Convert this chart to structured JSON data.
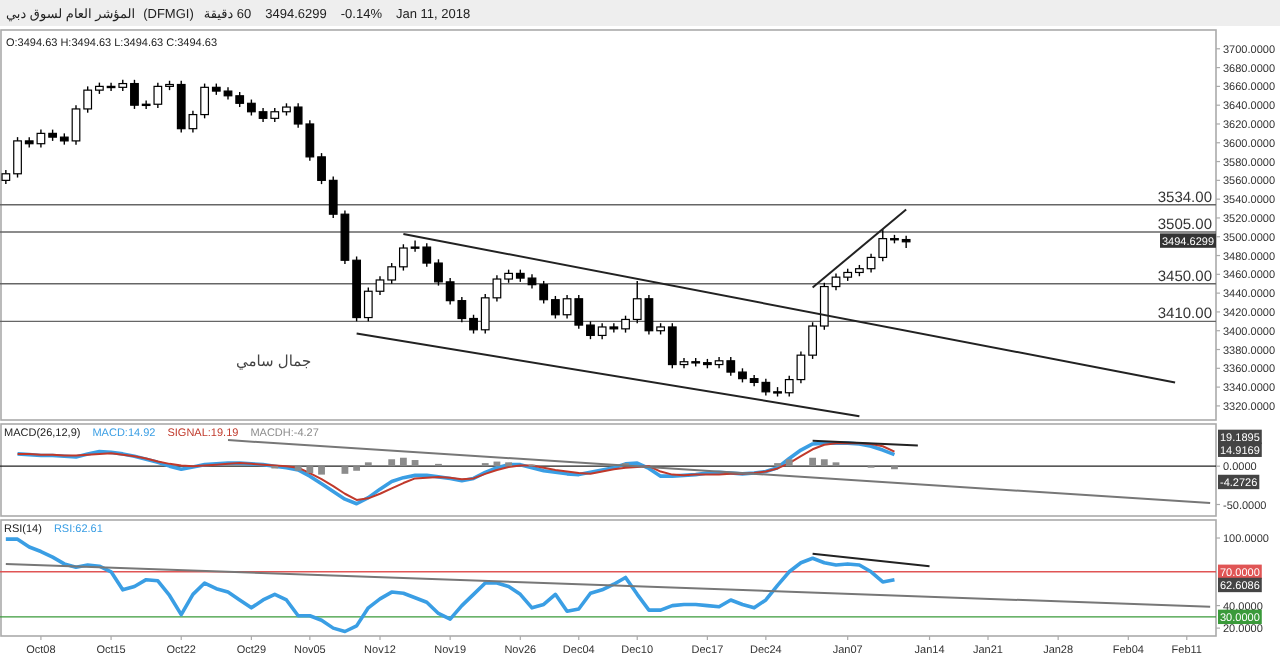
{
  "chart_data": [
    {
      "type": "candlestick",
      "title": "المؤشر العام لسوق دبي",
      "subtitle": "(DFMGI)",
      "categories": [
        null,
        null,
        null,
        null,
        null,
        null,
        null,
        null,
        null,
        null,
        null,
        null,
        null,
        null,
        null,
        null,
        null,
        null,
        null,
        null,
        null,
        null,
        null,
        null,
        null,
        null,
        null,
        null,
        null,
        null,
        null,
        null,
        null,
        null,
        null,
        null,
        null,
        null,
        null,
        null,
        null,
        null,
        null,
        null,
        null,
        null,
        null,
        null,
        null,
        null,
        null,
        null,
        null,
        null,
        null,
        null,
        null,
        null,
        null,
        null,
        null,
        null,
        null,
        null,
        null,
        null,
        null,
        null,
        null,
        null,
        null,
        null,
        null,
        null,
        null,
        null,
        null,
        null,
        null,
        null,
        null,
        null,
        null,
        null,
        null,
        null,
        null,
        null,
        null,
        null,
        null,
        null,
        null,
        null,
        null,
        null,
        null,
        null,
        null,
        null,
        null,
        null,
        null,
        null
      ],
      "ohlc": [
        [
          3560,
          3571,
          3556,
          3567
        ],
        [
          3567,
          3606,
          3563,
          3602
        ],
        [
          3602,
          3606,
          3595,
          3599
        ],
        [
          3599,
          3614,
          3595,
          3610
        ],
        [
          3610,
          3614,
          3602,
          3606
        ],
        [
          3606,
          3610,
          3598,
          3602
        ],
        [
          3602,
          3640,
          3598,
          3636
        ],
        [
          3636,
          3660,
          3632,
          3656
        ],
        [
          3656,
          3664,
          3652,
          3660
        ],
        [
          3660,
          3664,
          3655,
          3659
        ],
        [
          3659,
          3667,
          3655,
          3663
        ],
        [
          3663,
          3667,
          3636,
          3640
        ],
        [
          3640,
          3645,
          3636,
          3641
        ],
        [
          3641,
          3664,
          3637,
          3660
        ],
        [
          3660,
          3666,
          3656,
          3662
        ],
        [
          3662,
          3666,
          3611,
          3615
        ],
        [
          3615,
          3634,
          3611,
          3630
        ],
        [
          3630,
          3663,
          3626,
          3659
        ],
        [
          3659,
          3663,
          3651,
          3655
        ],
        [
          3655,
          3659,
          3646,
          3650
        ],
        [
          3650,
          3654,
          3638,
          3642
        ],
        [
          3642,
          3646,
          3629,
          3633
        ],
        [
          3633,
          3637,
          3622,
          3626
        ],
        [
          3626,
          3637,
          3622,
          3633
        ],
        [
          3633,
          3642,
          3629,
          3638
        ],
        [
          3638,
          3642,
          3616,
          3620
        ],
        [
          3620,
          3624,
          3581,
          3585
        ],
        [
          3585,
          3589,
          3556,
          3560
        ],
        [
          3560,
          3564,
          3520,
          3524
        ],
        [
          3524,
          3528,
          3471,
          3475
        ],
        [
          3475,
          3479,
          3410,
          3414
        ],
        [
          3414,
          3446,
          3410,
          3442
        ],
        [
          3442,
          3458,
          3438,
          3454
        ],
        [
          3454,
          3472,
          3450,
          3468
        ],
        [
          3468,
          3492,
          3464,
          3488
        ],
        [
          3488,
          3496,
          3484,
          3489
        ],
        [
          3489,
          3493,
          3468,
          3472
        ],
        [
          3472,
          3476,
          3448,
          3452
        ],
        [
          3452,
          3456,
          3428,
          3432
        ],
        [
          3432,
          3436,
          3409,
          3413
        ],
        [
          3413,
          3417,
          3397,
          3401
        ],
        [
          3401,
          3439,
          3397,
          3435
        ],
        [
          3435,
          3459,
          3431,
          3455
        ],
        [
          3455,
          3465,
          3451,
          3461
        ],
        [
          3461,
          3465,
          3452,
          3456
        ],
        [
          3456,
          3460,
          3445,
          3449
        ],
        [
          3449,
          3453,
          3429,
          3433
        ],
        [
          3433,
          3437,
          3413,
          3417
        ],
        [
          3417,
          3438,
          3413,
          3434
        ],
        [
          3434,
          3438,
          3402,
          3406
        ],
        [
          3406,
          3410,
          3391,
          3395
        ],
        [
          3395,
          3408,
          3391,
          3404
        ],
        [
          3404,
          3408,
          3398,
          3402
        ],
        [
          3402,
          3416,
          3398,
          3412
        ],
        [
          3412,
          3453,
          3408,
          3434
        ],
        [
          3434,
          3438,
          3396,
          3400
        ],
        [
          3400,
          3408,
          3396,
          3404
        ],
        [
          3404,
          3408,
          3360,
          3364
        ],
        [
          3364,
          3371,
          3360,
          3367
        ],
        [
          3367,
          3371,
          3362,
          3366
        ],
        [
          3366,
          3370,
          3360,
          3364
        ],
        [
          3364,
          3372,
          3360,
          3368
        ],
        [
          3368,
          3372,
          3352,
          3356
        ],
        [
          3356,
          3360,
          3345,
          3349
        ],
        [
          3349,
          3353,
          3341,
          3345
        ],
        [
          3345,
          3349,
          3331,
          3335
        ],
        [
          3335,
          3340,
          3330,
          3334
        ],
        [
          3334,
          3352,
          3330,
          3348
        ],
        [
          3348,
          3378,
          3344,
          3374
        ],
        [
          3374,
          3409,
          3370,
          3405
        ],
        [
          3405,
          3451,
          3401,
          3447
        ],
        [
          3447,
          3461,
          3443,
          3457
        ],
        [
          3457,
          3466,
          3453,
          3462
        ],
        [
          3462,
          3470,
          3458,
          3466
        ],
        [
          3466,
          3482,
          3462,
          3478
        ],
        [
          3478,
          3508,
          3474,
          3498
        ],
        [
          3498,
          3502,
          3493,
          3497
        ],
        [
          3497,
          3501,
          3488,
          3494.63
        ],
        null,
        null,
        null,
        null,
        null,
        null,
        null,
        null,
        null,
        null,
        null,
        null,
        null,
        null,
        null,
        null,
        null,
        null,
        null,
        null,
        null,
        null,
        null,
        null,
        null,
        null
      ],
      "series": [
        {
          "type": "line",
          "color": "#222222",
          "values": [
            null,
            null,
            null,
            null,
            null,
            null,
            null,
            null,
            null,
            null,
            null,
            null,
            null,
            null,
            null,
            null,
            null,
            null,
            null,
            null,
            null,
            null,
            null,
            null,
            null,
            null,
            null,
            null,
            null,
            null,
            null,
            null,
            null,
            null,
            3503,
            null,
            null,
            null,
            null,
            null,
            null,
            null,
            null,
            null,
            null,
            null,
            null,
            null,
            null,
            null,
            null,
            null,
            null,
            null,
            null,
            null,
            null,
            null,
            null,
            null,
            null,
            null,
            null,
            null,
            null,
            null,
            null,
            null,
            null,
            null,
            null,
            null,
            null,
            null,
            null,
            null,
            null,
            null,
            null,
            null,
            null,
            null,
            null,
            null,
            null,
            null,
            null,
            null,
            null,
            null,
            null,
            null,
            null,
            null,
            null,
            null,
            null,
            null,
            null,
            null,
            3345,
            null,
            null,
            null
          ]
        },
        {
          "type": "line",
          "color": "#222222",
          "values": [
            null,
            null,
            null,
            null,
            null,
            null,
            null,
            null,
            null,
            null,
            null,
            null,
            null,
            null,
            null,
            null,
            null,
            null,
            null,
            null,
            null,
            null,
            null,
            null,
            null,
            null,
            null,
            null,
            null,
            null,
            3397,
            null,
            null,
            null,
            null,
            null,
            null,
            null,
            null,
            null,
            null,
            null,
            null,
            null,
            null,
            null,
            null,
            null,
            null,
            null,
            null,
            null,
            null,
            null,
            null,
            null,
            null,
            null,
            null,
            null,
            null,
            null,
            null,
            null,
            null,
            null,
            null,
            null,
            null,
            null,
            null,
            null,
            null,
            3309,
            null,
            null,
            null,
            null,
            null,
            null,
            null,
            null,
            null,
            null,
            null,
            null,
            null,
            null,
            null,
            null,
            null,
            null,
            null,
            null,
            null,
            null,
            null,
            null,
            null,
            null,
            null,
            null,
            null,
            null
          ]
        },
        {
          "type": "line",
          "color": "#222222",
          "values": [
            null,
            null,
            null,
            null,
            null,
            null,
            null,
            null,
            null,
            null,
            null,
            null,
            null,
            null,
            null,
            null,
            null,
            null,
            null,
            null,
            null,
            null,
            null,
            null,
            null,
            null,
            null,
            null,
            null,
            null,
            null,
            null,
            null,
            null,
            null,
            null,
            null,
            null,
            null,
            null,
            null,
            null,
            null,
            null,
            null,
            null,
            null,
            null,
            null,
            null,
            null,
            null,
            null,
            null,
            null,
            null,
            null,
            null,
            null,
            null,
            null,
            null,
            null,
            null,
            null,
            null,
            null,
            null,
            null,
            3446,
            null,
            null,
            null,
            null,
            null,
            null,
            null,
            3529,
            null,
            null,
            null,
            null,
            null,
            null,
            null,
            null,
            null,
            null,
            null,
            null,
            null,
            null,
            null,
            null,
            null,
            null,
            null,
            null,
            null,
            null,
            null,
            null,
            null,
            null
          ]
        }
      ],
      "ylim": [
        3305,
        3720
      ],
      "tick_labels": "y",
      "yticks": [
        {
          "value": 3320,
          "label": "3320.0000"
        },
        {
          "value": 3340,
          "label": "3340.0000"
        },
        {
          "value": 3360,
          "label": "3360.0000"
        },
        {
          "value": 3380,
          "label": "3380.0000"
        },
        {
          "value": 3400,
          "label": "3400.0000"
        },
        {
          "value": 3420,
          "label": "3420.0000"
        },
        {
          "value": 3440,
          "label": "3440.0000"
        },
        {
          "value": 3460,
          "label": "3460.0000"
        },
        {
          "value": 3480,
          "label": "3480.0000"
        },
        {
          "value": 3500,
          "label": "3500.0000"
        },
        {
          "value": 3520,
          "label": "3520.0000"
        },
        {
          "value": 3540,
          "label": "3540.0000"
        },
        {
          "value": 3560,
          "label": "3560.0000"
        },
        {
          "value": 3580,
          "label": "3580.0000"
        },
        {
          "value": 3600,
          "label": "3600.0000"
        },
        {
          "value": 3620,
          "label": "3620.0000"
        },
        {
          "value": 3640,
          "label": "3640.0000"
        },
        {
          "value": 3660,
          "label": "3660.0000"
        },
        {
          "value": 3680,
          "label": "3680.0000"
        },
        {
          "value": 3700,
          "label": "3700.0000"
        }
      ],
      "ref_lines": [
        {
          "axis": "y",
          "value": 3534,
          "label": "3534.00",
          "color": "#666666"
        },
        {
          "axis": "y",
          "value": 3505,
          "label": "3505.00",
          "color": "#666666"
        },
        {
          "axis": "y",
          "value": 3450,
          "label": "3450.00",
          "color": "#666666"
        },
        {
          "axis": "y",
          "value": 3410,
          "label": "3410.00",
          "color": "#666666"
        }
      ],
      "annotations": [
        "60 دقيقة",
        "3494.6299",
        "-0.14%",
        "Jan 11, 2018",
        "O:3494.63 H:3494.63 L:3494.63 C:3494.63",
        "جمال سامي",
        "3494.6299"
      ]
    },
    {
      "type": "line",
      "title": "MACD(26,12,9)",
      "categories": [
        null,
        null,
        null,
        null,
        null,
        null,
        null,
        null,
        null,
        null,
        null,
        null,
        null,
        null,
        null,
        null,
        null,
        null,
        null,
        null,
        null,
        null,
        null,
        null,
        null,
        null,
        null,
        null,
        null,
        null,
        null,
        null,
        null,
        null,
        null,
        null,
        null,
        null,
        null,
        null,
        null,
        null,
        null,
        null,
        null,
        null,
        null,
        null,
        null,
        null,
        null,
        null,
        null,
        null,
        null,
        null,
        null,
        null,
        null,
        null,
        null,
        null,
        null,
        null,
        null,
        null,
        null,
        null,
        null,
        null,
        null,
        null,
        null,
        null,
        null,
        null,
        null,
        null,
        null,
        null,
        null,
        null,
        null,
        null,
        null,
        null,
        null,
        null,
        null,
        null,
        null,
        null,
        null,
        null,
        null,
        null,
        null,
        null,
        null,
        null,
        null,
        null,
        null,
        null
      ],
      "series": [
        {
          "name": "MACD:14.92",
          "color": "#3a9ee4",
          "values": [
            null,
            16,
            15,
            14,
            14,
            13,
            12,
            16,
            19,
            18,
            16,
            13,
            9,
            5,
            0,
            -4,
            -1,
            2,
            3,
            4,
            4,
            3,
            2,
            0,
            -2,
            -5,
            -13,
            -23,
            -33,
            -43,
            -49,
            -41,
            -30,
            -20,
            -15,
            -12,
            -12,
            -14,
            -16,
            -19,
            -16,
            -8,
            -2,
            2,
            2,
            -2,
            -6,
            -8,
            -10,
            -11,
            -8,
            -5,
            -2,
            3,
            4,
            -3,
            -13,
            -13,
            -12,
            -11,
            -9,
            -8,
            -9,
            -10,
            -9,
            -7,
            -2,
            10,
            21,
            29,
            30,
            30,
            30,
            29,
            26,
            21,
            15,
            null,
            null,
            null,
            null,
            null,
            null,
            null,
            null,
            null,
            null,
            null,
            null,
            null,
            null,
            null,
            null,
            null,
            null,
            null,
            null,
            null,
            null,
            null,
            null,
            null,
            null,
            null
          ]
        },
        {
          "name": "SIGNAL:19.19",
          "color": "#c0392b",
          "values": [
            null,
            16,
            16,
            15,
            15,
            14,
            14,
            15,
            16,
            17,
            15,
            13,
            10,
            6,
            3,
            1,
            0,
            1,
            2,
            3,
            4,
            3,
            2,
            1,
            0,
            -2,
            -9,
            -17,
            -26,
            -36,
            -44,
            -42,
            -36,
            -29,
            -22,
            -16,
            -15,
            -14,
            -15,
            -17,
            -16,
            -10,
            -5,
            -1,
            1,
            1,
            -2,
            -5,
            -7,
            -9,
            -10,
            -7,
            -4,
            -2,
            -1,
            0,
            -7,
            -11,
            -12,
            -11,
            -11,
            -11,
            -10,
            -10,
            -9,
            -7,
            -3,
            4,
            13,
            22,
            28,
            30,
            30,
            30,
            29,
            26,
            19,
            null,
            null,
            null,
            null,
            null,
            null,
            null,
            null,
            null,
            null,
            null,
            null,
            null,
            null,
            null,
            null,
            null,
            null,
            null,
            null,
            null,
            null,
            null,
            null,
            null,
            null,
            null
          ]
        },
        {
          "name": "MACDH:-4.27",
          "type": "bar",
          "color": "#8c8c8c",
          "values": [
            null,
            null,
            null,
            null,
            null,
            null,
            null,
            null,
            null,
            null,
            null,
            null,
            null,
            null,
            null,
            null,
            null,
            null,
            null,
            null,
            null,
            null,
            null,
            -3,
            null,
            -6,
            -9,
            -11,
            null,
            -10,
            -6,
            5,
            null,
            9,
            11,
            8,
            null,
            3,
            null,
            null,
            null,
            4,
            6,
            5,
            null,
            2,
            null,
            null,
            null,
            null,
            null,
            null,
            null,
            4,
            null,
            null,
            null,
            null,
            null,
            null,
            null,
            null,
            null,
            null,
            null,
            null,
            4,
            9,
            null,
            11,
            9,
            5,
            null,
            null,
            -2,
            null,
            -4,
            null,
            null,
            null,
            null,
            null,
            null,
            null,
            null,
            null,
            null,
            null,
            null,
            null,
            null,
            null,
            null,
            null,
            null,
            null,
            null,
            null,
            null,
            null,
            null,
            null,
            null,
            null
          ]
        },
        {
          "type": "line",
          "color": "#777777",
          "values": [
            null,
            null,
            null,
            null,
            null,
            null,
            null,
            null,
            null,
            null,
            null,
            null,
            null,
            null,
            null,
            null,
            null,
            null,
            null,
            34,
            null,
            null,
            null,
            null,
            null,
            null,
            null,
            null,
            null,
            null,
            null,
            null,
            null,
            null,
            null,
            null,
            null,
            null,
            null,
            null,
            null,
            null,
            null,
            null,
            null,
            null,
            null,
            null,
            null,
            null,
            null,
            null,
            null,
            null,
            null,
            null,
            null,
            null,
            null,
            null,
            null,
            null,
            null,
            null,
            null,
            null,
            null,
            null,
            null,
            null,
            null,
            null,
            null,
            null,
            null,
            null,
            null,
            null,
            null,
            null,
            null,
            null,
            null,
            null,
            null,
            null,
            null,
            null,
            null,
            null,
            null,
            null,
            null,
            null,
            null,
            null,
            null,
            null,
            null,
            null,
            null,
            null,
            null,
            -48
          ]
        },
        {
          "type": "line",
          "color": "#222222",
          "values": [
            null,
            null,
            null,
            null,
            null,
            null,
            null,
            null,
            null,
            null,
            null,
            null,
            null,
            null,
            null,
            null,
            null,
            null,
            null,
            null,
            null,
            null,
            null,
            null,
            null,
            null,
            null,
            null,
            null,
            null,
            null,
            null,
            null,
            null,
            null,
            null,
            null,
            null,
            null,
            null,
            null,
            null,
            null,
            null,
            null,
            null,
            null,
            null,
            null,
            null,
            null,
            null,
            null,
            null,
            null,
            null,
            null,
            null,
            null,
            null,
            null,
            null,
            null,
            null,
            null,
            null,
            null,
            null,
            null,
            33,
            null,
            null,
            null,
            null,
            null,
            null,
            null,
            null,
            27,
            null,
            null,
            null,
            null,
            null,
            null,
            null,
            null,
            null,
            null,
            null,
            null,
            null,
            null,
            null,
            null,
            null,
            null,
            null,
            null,
            null,
            null,
            null,
            null,
            null
          ]
        }
      ],
      "ylim": [
        -65,
        55
      ],
      "tick_labels": "y",
      "yticks": [
        {
          "value": -50,
          "label": "-50.0000"
        },
        {
          "value": 0,
          "label": "0.0000"
        }
      ],
      "ref_lines": [
        {
          "axis": "y",
          "value": 0,
          "color": "#222222"
        }
      ],
      "annotations": [
        "19.1895",
        "14.9169",
        "-4.2726"
      ]
    },
    {
      "type": "line",
      "title": "RSI(14)",
      "categories": [
        null,
        null,
        null,
        "Oct08",
        null,
        null,
        null,
        null,
        null,
        "Oct15",
        null,
        null,
        null,
        null,
        null,
        "Oct22",
        null,
        null,
        null,
        null,
        null,
        "Oct29",
        null,
        null,
        null,
        null,
        "Nov05",
        null,
        null,
        null,
        null,
        null,
        "Nov12",
        null,
        null,
        null,
        null,
        null,
        "Nov19",
        null,
        null,
        null,
        null,
        null,
        "Nov26",
        null,
        null,
        null,
        null,
        "Dec04",
        null,
        null,
        null,
        null,
        "Dec10",
        null,
        null,
        null,
        null,
        null,
        "Dec17",
        null,
        null,
        null,
        null,
        "Dec24",
        null,
        null,
        null,
        null,
        null,
        null,
        "Jan07",
        null,
        null,
        null,
        null,
        null,
        null,
        "Jan14",
        null,
        null,
        null,
        null,
        "Jan21",
        null,
        null,
        null,
        null,
        null,
        "Jan28",
        null,
        null,
        null,
        null,
        null,
        "Feb04",
        null,
        null,
        null,
        null,
        "Feb11",
        null,
        null
      ],
      "series": [
        {
          "name": "RSI:62.61",
          "color": "#3a9ee4",
          "values": [
            99,
            99,
            92,
            88,
            83,
            77,
            74,
            76,
            75,
            70,
            54,
            57,
            63,
            62,
            49,
            32,
            50,
            60,
            55,
            52,
            45,
            38,
            45,
            50,
            45,
            31,
            31,
            27,
            20,
            17,
            22,
            38,
            46,
            52,
            51,
            47,
            43,
            33,
            28,
            40,
            50,
            60,
            60,
            57,
            50,
            38,
            41,
            50,
            35,
            37,
            51,
            54,
            59,
            65,
            50,
            36,
            36,
            40,
            41,
            41,
            40,
            39,
            45,
            41,
            38,
            45,
            58,
            70,
            78,
            82,
            78,
            76,
            77,
            76,
            70,
            61,
            63,
            null,
            null,
            null,
            null,
            null,
            null,
            null,
            null,
            null,
            null,
            null,
            null,
            null,
            null,
            null,
            null,
            null,
            null,
            null,
            null,
            null,
            null,
            null,
            null,
            null,
            null,
            null
          ]
        },
        {
          "type": "line",
          "color": "#777777",
          "values": [
            77,
            null,
            null,
            null,
            null,
            null,
            null,
            null,
            null,
            null,
            null,
            null,
            null,
            null,
            null,
            null,
            null,
            null,
            null,
            null,
            null,
            null,
            null,
            null,
            null,
            null,
            null,
            null,
            null,
            null,
            null,
            null,
            null,
            null,
            null,
            null,
            null,
            null,
            null,
            null,
            null,
            null,
            null,
            null,
            null,
            null,
            null,
            null,
            null,
            null,
            null,
            null,
            null,
            null,
            null,
            null,
            null,
            null,
            null,
            null,
            null,
            null,
            null,
            null,
            null,
            null,
            null,
            null,
            null,
            null,
            null,
            null,
            null,
            null,
            null,
            null,
            null,
            null,
            null,
            null,
            null,
            null,
            null,
            null,
            null,
            null,
            null,
            null,
            null,
            null,
            null,
            null,
            null,
            null,
            null,
            null,
            null,
            null,
            null,
            null,
            null,
            null,
            null,
            39
          ]
        },
        {
          "type": "line",
          "color": "#222222",
          "values": [
            null,
            null,
            null,
            null,
            null,
            null,
            null,
            null,
            null,
            null,
            null,
            null,
            null,
            null,
            null,
            null,
            null,
            null,
            null,
            null,
            null,
            null,
            null,
            null,
            null,
            null,
            null,
            null,
            null,
            null,
            null,
            null,
            null,
            null,
            null,
            null,
            null,
            null,
            null,
            null,
            null,
            null,
            null,
            null,
            null,
            null,
            null,
            null,
            null,
            null,
            null,
            null,
            null,
            null,
            null,
            null,
            null,
            null,
            null,
            null,
            null,
            null,
            null,
            null,
            null,
            null,
            null,
            null,
            null,
            86,
            null,
            null,
            null,
            null,
            null,
            null,
            null,
            null,
            null,
            75,
            null,
            null,
            null,
            null,
            null,
            null,
            null,
            null,
            null,
            null,
            null,
            null,
            null,
            null,
            null,
            null,
            null,
            null,
            null,
            null,
            null,
            null,
            null,
            null
          ]
        }
      ],
      "ylim": [
        13,
        116
      ],
      "yticks": [
        {
          "value": 20,
          "label": "20.0000"
        },
        {
          "value": 40,
          "label": "40.0000"
        },
        {
          "value": 100,
          "label": "100.0000"
        }
      ],
      "ref_lines": [
        {
          "axis": "y",
          "value": 70,
          "label": "70.0000",
          "color": "#e05555"
        },
        {
          "axis": "y",
          "value": 30,
          "label": "30.0000",
          "color": "#3a9a3a"
        }
      ],
      "annotations": [
        "62.6086"
      ]
    }
  ]
}
